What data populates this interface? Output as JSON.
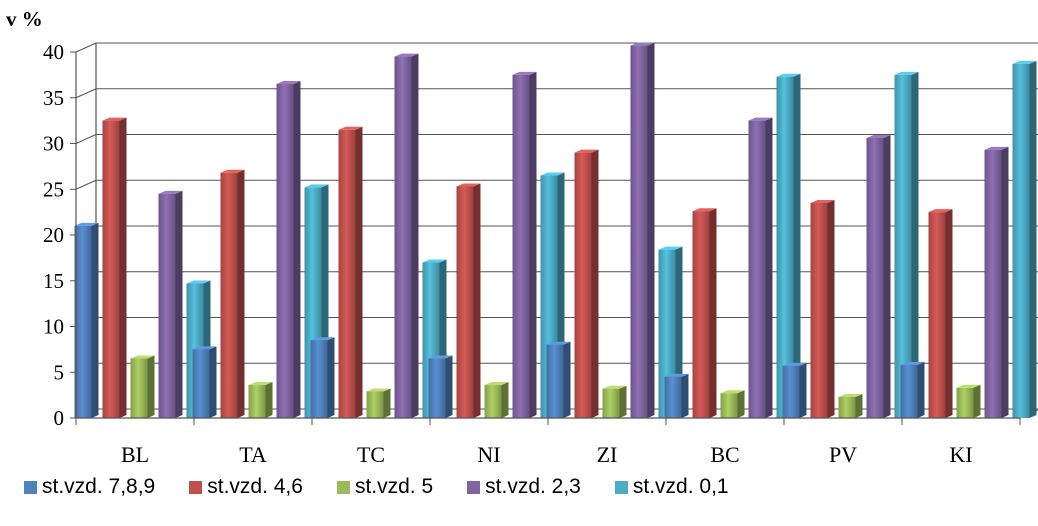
{
  "chart_data": {
    "type": "bar",
    "ylabel": "v %",
    "ylim": [
      0,
      40
    ],
    "yticks": [
      "0",
      "5",
      "10",
      "15",
      "20",
      "25",
      "30",
      "35",
      "40"
    ],
    "categories": [
      "BL",
      "TA",
      "TC",
      "NI",
      "ZI",
      "BC",
      "PV",
      "KI"
    ],
    "series": [
      {
        "name": "st.vzd. 7,8,9",
        "color": "#4F81BD",
        "values": [
          21,
          7.5,
          8.5,
          6.5,
          8,
          4.5,
          5.7,
          5.8
        ]
      },
      {
        "name": "st.vzd. 4,6",
        "color": "#C0504D",
        "values": [
          32.5,
          26.8,
          31.5,
          25.3,
          29,
          22.6,
          23.5,
          22.5
        ]
      },
      {
        "name": "st.vzd. 5",
        "color": "#9BBB59",
        "values": [
          6.5,
          3.6,
          2.9,
          3.6,
          3.2,
          2.7,
          2.3,
          3.3
        ]
      },
      {
        "name": "st.vzd. 2,3",
        "color": "#8064A2",
        "values": [
          24.5,
          36.5,
          39.5,
          37.5,
          40.7,
          32.5,
          30.6,
          29.3
        ]
      },
      {
        "name": "st.vzd. 0,1",
        "color": "#4BACC6",
        "values": [
          14.7,
          25.2,
          17,
          26.5,
          18.4,
          37.3,
          37.5,
          38.7
        ]
      }
    ],
    "grid": true,
    "legend": "bottom"
  }
}
